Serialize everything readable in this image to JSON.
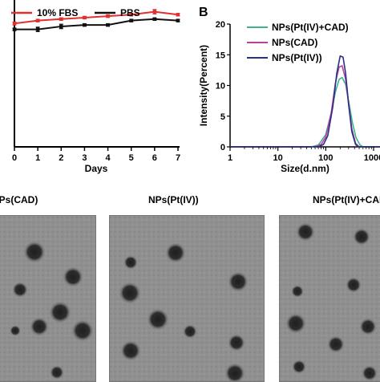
{
  "panel_b_label": "B",
  "chart_data": [
    {
      "type": "line",
      "xlabel": "Days",
      "ylabel": "",
      "x_ticks": [
        "0",
        "1",
        "2",
        "3",
        "4",
        "5",
        "6",
        "7"
      ],
      "xlim": [
        0,
        7
      ],
      "legend": "top-left",
      "grid": false,
      "series": [
        {
          "name": "10% FBS",
          "color": "#e03030",
          "x": [
            0,
            1,
            2,
            3,
            4,
            5,
            6,
            7
          ],
          "y": [
            144,
            146,
            147,
            148,
            149,
            150,
            152,
            150
          ],
          "err": [
            1.0,
            0.8,
            0.8,
            0.8,
            0.8,
            0.8,
            1.5,
            0.8
          ]
        },
        {
          "name": "PBS",
          "color": "#111111",
          "x": [
            0,
            1,
            2,
            3,
            4,
            5,
            6,
            7
          ],
          "y": [
            140,
            140,
            142,
            143,
            143,
            146,
            147,
            146
          ],
          "err": [
            0.8,
            1.5,
            1.5,
            0.8,
            0.8,
            0.8,
            0.8,
            0.8
          ]
        }
      ]
    },
    {
      "type": "line",
      "panel": "B",
      "xlabel": "Size(d.nm)",
      "ylabel": "Intensity(Percent)",
      "x_scale": "log",
      "x_ticks": [
        "1",
        "10",
        "100",
        "1000"
      ],
      "y_ticks": [
        "0",
        "5",
        "10",
        "15",
        "20"
      ],
      "ylim": [
        0,
        20
      ],
      "legend": "top-right",
      "grid": false,
      "series": [
        {
          "name": "NPs(Pt(IV)+CAD)",
          "color": "#3cb58a",
          "x": [
            50,
            70,
            100,
            130,
            160,
            190,
            220,
            260,
            300,
            360,
            430,
            520,
            600
          ],
          "y": [
            0,
            0.3,
            2.0,
            5.5,
            9.0,
            11.0,
            11.3,
            10.2,
            7.5,
            4.0,
            1.5,
            0.3,
            0
          ]
        },
        {
          "name": "NPs(CAD)",
          "color": "#b8409e",
          "x": [
            60,
            80,
            100,
            130,
            160,
            190,
            220,
            260,
            300,
            350,
            420,
            500
          ],
          "y": [
            0,
            0.4,
            1.6,
            5.5,
            10.5,
            13.0,
            13.2,
            11.0,
            7.0,
            3.0,
            0.6,
            0
          ]
        },
        {
          "name": "NPs(Pt(IV))",
          "color": "#2b2f8a",
          "x": [
            70,
            90,
            110,
            140,
            170,
            200,
            230,
            260,
            300,
            350,
            420,
            480
          ],
          "y": [
            0,
            0.4,
            1.8,
            6.5,
            12.0,
            14.8,
            14.6,
            12.0,
            7.0,
            2.5,
            0.4,
            0
          ]
        }
      ]
    }
  ],
  "tem": {
    "titles": [
      "NPs(CAD)",
      "NPs(Pt(IV))",
      "NPs(Pt(IV)+CAD)"
    ]
  }
}
